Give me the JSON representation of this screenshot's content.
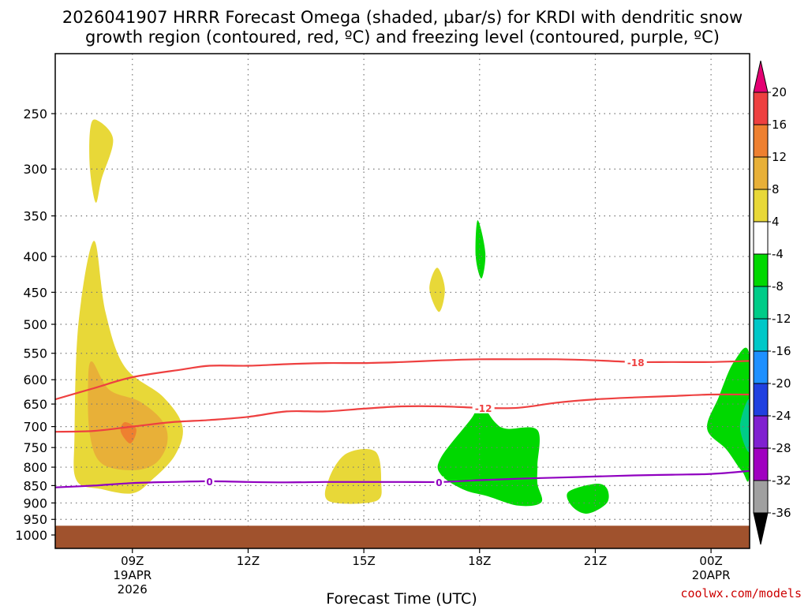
{
  "chart_data": {
    "type": "heatmap",
    "title_lines": [
      "2026041907 HRRR Forecast Omega (shaded, µbar/s) for KRDI with dendritic snow",
      "growth region (contoured, red, ºC) and freezing level (contoured, purple, ºC)"
    ],
    "xlabel": "Forecast Time (UTC)",
    "ylabel": "",
    "x_range_hours": [
      7,
      25
    ],
    "y_scale": "log-pressure",
    "y_range_mb": [
      200,
      1050
    ],
    "y_ticks": [
      250,
      300,
      350,
      400,
      450,
      500,
      550,
      600,
      650,
      700,
      750,
      800,
      850,
      900,
      950,
      1000
    ],
    "x_ticks": [
      {
        "hour": 9,
        "lines": [
          "09Z",
          "19APR",
          "2026"
        ]
      },
      {
        "hour": 12,
        "lines": [
          "12Z"
        ]
      },
      {
        "hour": 15,
        "lines": [
          "15Z"
        ]
      },
      {
        "hour": 18,
        "lines": [
          "18Z"
        ]
      },
      {
        "hour": 21,
        "lines": [
          "21Z"
        ]
      },
      {
        "hour": 24,
        "lines": [
          "00Z",
          "20APR"
        ]
      }
    ],
    "grid": true,
    "ground_level_mb": 970,
    "ground_color": "#a0522d",
    "colorbar": {
      "placement": "right",
      "levels": [
        {
          "label": "20",
          "color": "#e40073"
        },
        {
          "label": "16",
          "color": "#ee4040"
        },
        {
          "label": "12",
          "color": "#ee8030"
        },
        {
          "label": "8",
          "color": "#e8b038"
        },
        {
          "label": "4",
          "color": "#e8d838"
        },
        {
          "label": "-4",
          "color": "#ffffff"
        },
        {
          "label": "-8",
          "color": "#00d800"
        },
        {
          "label": "-12",
          "color": "#00cc88"
        },
        {
          "label": "-16",
          "color": "#00c8c8"
        },
        {
          "label": "-20",
          "color": "#1e90ff"
        },
        {
          "label": "-24",
          "color": "#2040e0"
        },
        {
          "label": "-28",
          "color": "#8020d0"
        },
        {
          "label": "-32",
          "color": "#a000c0"
        },
        {
          "label": "-36",
          "color": "#a0a0a0"
        }
      ],
      "extend_low_color": "#000000"
    },
    "omega_fills": [
      {
        "level": 4,
        "color": "#e8d838",
        "points": [
          [
            8.05,
            255
          ],
          [
            8.5,
            272
          ],
          [
            8.2,
            310
          ],
          [
            8.05,
            335
          ],
          [
            7.9,
            300
          ],
          [
            7.9,
            265
          ]
        ]
      },
      {
        "level": 4,
        "color": "#e8d838",
        "points": [
          [
            8.0,
            380
          ],
          [
            8.3,
            480
          ],
          [
            8.8,
            575
          ],
          [
            9.8,
            635
          ],
          [
            10.3,
            700
          ],
          [
            10.1,
            770
          ],
          [
            9.5,
            835
          ],
          [
            9.0,
            872
          ],
          [
            8.2,
            860
          ],
          [
            7.55,
            835
          ],
          [
            7.5,
            720
          ],
          [
            7.6,
            500
          ]
        ]
      },
      {
        "level": 8,
        "color": "#e8b038",
        "points": [
          [
            7.95,
            565
          ],
          [
            8.4,
            620
          ],
          [
            9.2,
            645
          ],
          [
            9.8,
            690
          ],
          [
            9.9,
            740
          ],
          [
            9.6,
            790
          ],
          [
            9.0,
            808
          ],
          [
            8.2,
            790
          ],
          [
            7.9,
            720
          ],
          [
            7.85,
            610
          ]
        ]
      },
      {
        "level": 12,
        "color": "#ee8030",
        "points": [
          [
            8.8,
            690
          ],
          [
            9.1,
            706
          ],
          [
            8.95,
            740
          ],
          [
            8.7,
            712
          ]
        ]
      },
      {
        "level": 4,
        "color": "#e8d838",
        "points": [
          [
            14.55,
            765
          ],
          [
            15.3,
            760
          ],
          [
            15.45,
            840
          ],
          [
            15.3,
            895
          ],
          [
            14.1,
            895
          ],
          [
            14.1,
            830
          ]
        ]
      },
      {
        "level": 4,
        "color": "#e8d838",
        "points": [
          [
            16.9,
            415
          ],
          [
            17.1,
            445
          ],
          [
            16.95,
            480
          ],
          [
            16.7,
            445
          ]
        ]
      },
      {
        "level": -8,
        "color": "#00d800",
        "points": [
          [
            17.95,
            355
          ],
          [
            18.15,
            395
          ],
          [
            18.05,
            430
          ],
          [
            17.9,
            400
          ]
        ]
      },
      {
        "level": -8,
        "color": "#00d800",
        "points": [
          [
            17.8,
            680
          ],
          [
            18.0,
            648
          ],
          [
            18.4,
            690
          ],
          [
            18.7,
            705
          ],
          [
            19.5,
            708
          ],
          [
            19.5,
            795
          ],
          [
            19.5,
            845
          ],
          [
            19.6,
            898
          ],
          [
            19.0,
            908
          ],
          [
            18.2,
            880
          ],
          [
            17.6,
            862
          ],
          [
            17.0,
            820
          ],
          [
            17.0,
            775
          ]
        ]
      },
      {
        "level": -8,
        "color": "#00d800",
        "points": [
          [
            21.0,
            845
          ],
          [
            21.3,
            858
          ],
          [
            21.3,
            900
          ],
          [
            20.8,
            932
          ],
          [
            20.4,
            910
          ],
          [
            20.3,
            868
          ]
        ]
      },
      {
        "level": -8,
        "color": "#00d800",
        "points": [
          [
            24.6,
            565
          ],
          [
            25.0,
            555
          ],
          [
            25.0,
            815
          ],
          [
            24.8,
            810
          ],
          [
            24.4,
            755
          ],
          [
            23.9,
            705
          ],
          [
            24.2,
            635
          ]
        ]
      },
      {
        "level": -12,
        "color": "#00cc88",
        "points": [
          [
            25.0,
            640
          ],
          [
            25.0,
            760
          ],
          [
            24.75,
            700
          ]
        ]
      }
    ],
    "contours": [
      {
        "label": "-18",
        "color": "#ee4040",
        "label_at": [
          22.05,
          605
        ],
        "points": [
          [
            7,
            640
          ],
          [
            8,
            617
          ],
          [
            9,
            595
          ],
          [
            10.3,
            580
          ],
          [
            11,
            573
          ],
          [
            12,
            573
          ],
          [
            13,
            570
          ],
          [
            14,
            568
          ],
          [
            15,
            568
          ],
          [
            16,
            566
          ],
          [
            17,
            563
          ],
          [
            18,
            561
          ],
          [
            19,
            561
          ],
          [
            20,
            561
          ],
          [
            21,
            563
          ],
          [
            22,
            566
          ],
          [
            23,
            566
          ],
          [
            24,
            566
          ],
          [
            25,
            564
          ]
        ]
      },
      {
        "label": "-12",
        "color": "#ee4040",
        "label_at": [
          18.1,
          662
        ],
        "points": [
          [
            7,
            712
          ],
          [
            8,
            710
          ],
          [
            9,
            700
          ],
          [
            10,
            690
          ],
          [
            11,
            685
          ],
          [
            12,
            678
          ],
          [
            13,
            666
          ],
          [
            14,
            666
          ],
          [
            15,
            660
          ],
          [
            16,
            655
          ],
          [
            17,
            655
          ],
          [
            18,
            658
          ],
          [
            19,
            658
          ],
          [
            20,
            647
          ],
          [
            21,
            640
          ],
          [
            22,
            636
          ],
          [
            23,
            633
          ],
          [
            24,
            630
          ],
          [
            25,
            630
          ]
        ]
      },
      {
        "label": "0",
        "color": "#9000c0",
        "label_at": [
          11,
          843
        ],
        "points": [
          [
            7,
            855
          ],
          [
            8,
            850
          ],
          [
            9,
            843
          ],
          [
            10,
            840
          ],
          [
            11,
            838
          ],
          [
            12,
            840
          ],
          [
            13,
            841
          ],
          [
            14,
            840
          ],
          [
            15,
            840
          ],
          [
            16,
            840
          ],
          [
            17,
            840
          ],
          [
            18,
            835
          ],
          [
            19,
            831
          ],
          [
            20,
            828
          ],
          [
            21,
            825
          ],
          [
            22,
            822
          ],
          [
            23,
            820
          ],
          [
            24,
            818
          ],
          [
            25,
            810
          ]
        ]
      },
      {
        "label": "0",
        "color": "#9000c0",
        "label_at": [
          16.95,
          843
        ],
        "points": []
      }
    ]
  },
  "credit": "coolwx.com/models"
}
